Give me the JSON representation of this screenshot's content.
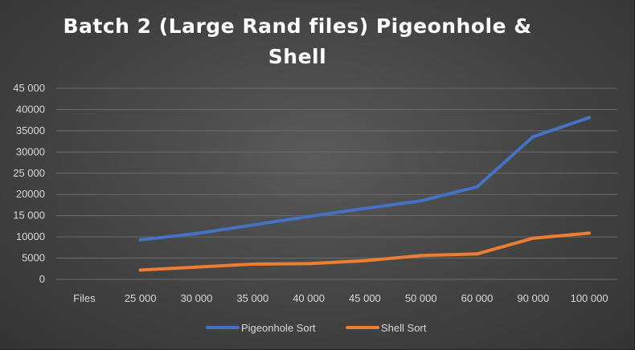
{
  "chart_data": {
    "type": "line",
    "title": "Batch 2 (Large Rand files) Pigeonhole & Shell",
    "categories": [
      "Files",
      "25 000",
      "30 000",
      "35 000",
      "40 000",
      "45 000",
      "50 000",
      "60 000",
      "90 000",
      "100 000"
    ],
    "series": [
      {
        "name": "Pigeonhole Sort",
        "color": "#4472c4",
        "values": [
          null,
          9300,
          10800,
          12800,
          14800,
          16700,
          18500,
          21800,
          33600,
          38100
        ]
      },
      {
        "name": "Shell Sort",
        "color": "#ed7d31",
        "values": [
          null,
          2200,
          2900,
          3600,
          3700,
          4400,
          5600,
          6000,
          9700,
          10900
        ]
      }
    ],
    "ylim": [
      0,
      45000
    ],
    "yticks": [
      0,
      5000,
      10000,
      15000,
      20000,
      25000,
      30000,
      35000,
      40000,
      45000
    ],
    "ytick_labels": [
      "0",
      "5000",
      "10000",
      "15 000",
      "20000",
      "25 000",
      "30000",
      "35000",
      "40000",
      "45 000"
    ],
    "xlabel": "",
    "ylabel": "",
    "grid": true,
    "legend_position": "bottom"
  }
}
